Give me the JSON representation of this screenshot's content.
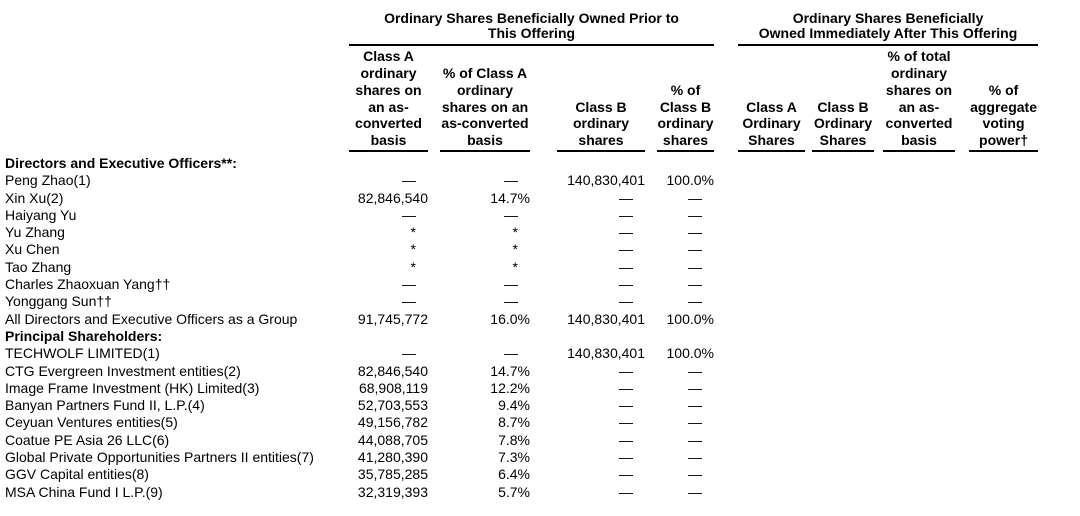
{
  "colors": {
    "text": "#000000",
    "background": "#ffffff",
    "rule": "#000000"
  },
  "table": {
    "group_headers": [
      {
        "title": "Ordinary Shares Beneficially Owned Prior to\nThis Offering"
      },
      {
        "title": "Ordinary Shares Beneficially\nOwned Immediately After This Offering"
      }
    ],
    "column_headers": [
      "Class A\nordinary\nshares on\nan as-\nconverted\nbasis",
      "% of Class A\nordinary\nshares on an\nas-converted\nbasis",
      "Class B\nordinary\nshares",
      "% of\nClass B\nordinary\nshares",
      "Class A\nOrdinary\nShares",
      "Class B\nOrdinary\nShares",
      "% of total\nordinary\nshares on\nan as-\nconverted\nbasis",
      "% of\naggregate\nvoting\npower†"
    ],
    "rows": [
      {
        "name": "Directors and Executive Officers**:",
        "section": true,
        "values": [
          "",
          "",
          "",
          ""
        ]
      },
      {
        "name": "Peng Zhao(1)",
        "section": false,
        "values": [
          "—",
          "—",
          "140,830,401",
          "100.0%"
        ]
      },
      {
        "name": "Xin Xu(2)",
        "section": false,
        "values": [
          "82,846,540",
          "14.7%",
          "—",
          "—"
        ]
      },
      {
        "name": "Haiyang Yu",
        "section": false,
        "values": [
          "—",
          "—",
          "—",
          "—"
        ]
      },
      {
        "name": "Yu Zhang",
        "section": false,
        "values": [
          "*",
          "*",
          "—",
          "—"
        ]
      },
      {
        "name": "Xu Chen",
        "section": false,
        "values": [
          "*",
          "*",
          "—",
          "—"
        ]
      },
      {
        "name": "Tao Zhang",
        "section": false,
        "values": [
          "*",
          "*",
          "—",
          "—"
        ]
      },
      {
        "name": "Charles Zhaoxuan Yang††",
        "section": false,
        "values": [
          "—",
          "—",
          "—",
          "—"
        ]
      },
      {
        "name": "Yonggang Sun††",
        "section": false,
        "values": [
          "—",
          "—",
          "—",
          "—"
        ]
      },
      {
        "name": "All Directors and Executive Officers as a Group",
        "section": false,
        "values": [
          "91,745,772",
          "16.0%",
          "140,830,401",
          "100.0%"
        ]
      },
      {
        "name": "Principal Shareholders:",
        "section": true,
        "values": [
          "",
          "",
          "",
          ""
        ]
      },
      {
        "name": "TECHWOLF LIMITED(1)",
        "section": false,
        "values": [
          "—",
          "—",
          "140,830,401",
          "100.0%"
        ]
      },
      {
        "name": "CTG Evergreen Investment entities(2)",
        "section": false,
        "values": [
          "82,846,540",
          "14.7%",
          "—",
          "—"
        ]
      },
      {
        "name": "Image Frame Investment (HK) Limited(3)",
        "section": false,
        "values": [
          "68,908,119",
          "12.2%",
          "—",
          "—"
        ]
      },
      {
        "name": "Banyan Partners Fund II, L.P.(4)",
        "section": false,
        "values": [
          "52,703,553",
          "9.4%",
          "—",
          "—"
        ]
      },
      {
        "name": "Ceyuan Ventures entities(5)",
        "section": false,
        "values": [
          "49,156,782",
          "8.7%",
          "—",
          "—"
        ]
      },
      {
        "name": "Coatue PE Asia 26 LLC(6)",
        "section": false,
        "values": [
          "44,088,705",
          "7.8%",
          "—",
          "—"
        ]
      },
      {
        "name": "Global Private Opportunities Partners II entities(7)",
        "section": false,
        "values": [
          "41,280,390",
          "7.3%",
          "—",
          "—"
        ]
      },
      {
        "name": "GGV Capital entities(8)",
        "section": false,
        "values": [
          "35,785,285",
          "6.4%",
          "—",
          "—"
        ]
      },
      {
        "name": "MSA China Fund I L.P.(9)",
        "section": false,
        "values": [
          "32,319,393",
          "5.7%",
          "—",
          "—"
        ]
      }
    ]
  }
}
